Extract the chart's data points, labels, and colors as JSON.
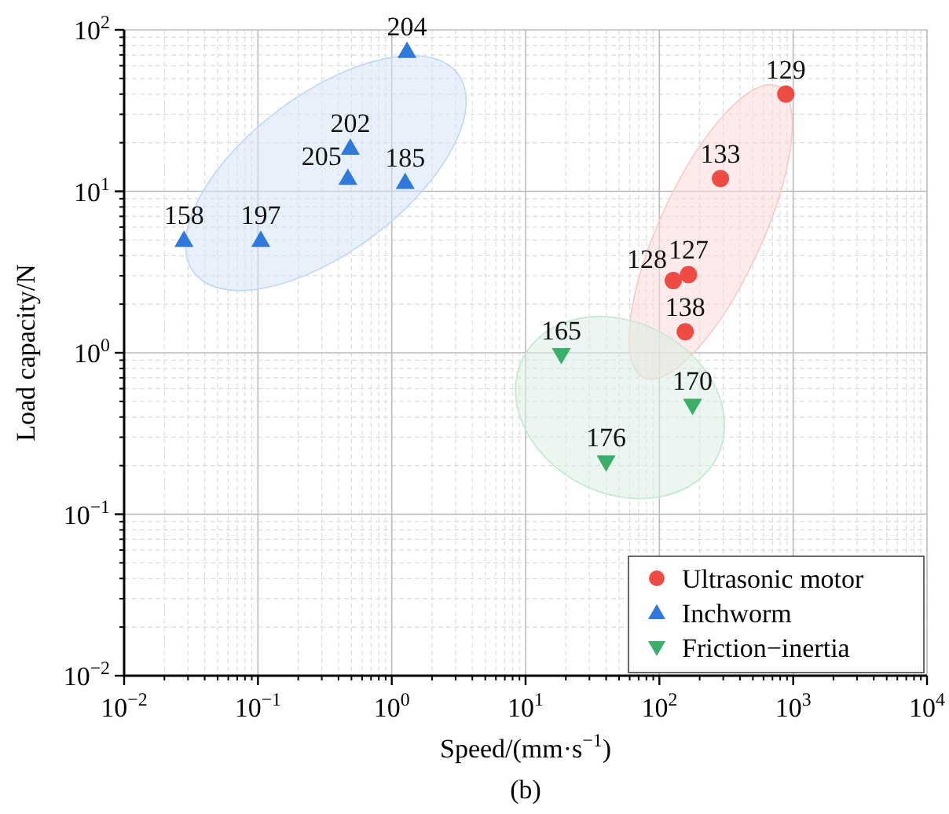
{
  "chart_data": {
    "type": "scatter",
    "xlabel": "Speed/(mm·s$^{−1}$)",
    "ylabel": "Load capacity/N",
    "log": "xy",
    "grid": true,
    "legend": "bottom right",
    "xlim": [
      0.01,
      10000
    ],
    "ylim": [
      0.01,
      100
    ],
    "xticks": [
      {
        "value": 0.01,
        "label": "10$^{−2}$"
      },
      {
        "value": 0.1,
        "label": "10$^{−1}$"
      },
      {
        "value": 1,
        "label": "10$^{0}$"
      },
      {
        "value": 10,
        "label": "10$^{1}$"
      },
      {
        "value": 100,
        "label": "10$^{2}$"
      },
      {
        "value": 1000,
        "label": "10$^{3}$"
      },
      {
        "value": 10000,
        "label": "10$^{4}$"
      }
    ],
    "yticks": [
      {
        "value": 0.01,
        "label": "10$^{−2}$"
      },
      {
        "value": 0.1,
        "label": "10$^{−1}$"
      },
      {
        "value": 1,
        "label": "10$^{0}$"
      },
      {
        "value": 10,
        "label": "10$^{1}$"
      },
      {
        "value": 100,
        "label": "10$^{2}$"
      }
    ],
    "series": [
      {
        "name": "Ultrasonic motor",
        "color": "#ef4b45",
        "marker": "circle",
        "x": [
          880,
          286,
          165,
          127,
          156
        ],
        "values": [
          40,
          12,
          3.05,
          2.8,
          1.35
        ]
      },
      {
        "name": "Inchworm",
        "color": "#2f78dc",
        "marker": "triangle",
        "x": [
          0.028,
          0.105,
          0.47,
          0.49,
          1.26,
          1.3
        ],
        "values": [
          5,
          5,
          12.1,
          18.6,
          11.4,
          74
        ]
      },
      {
        "name": "Friction−inertia",
        "color": "#3bae6a",
        "marker": "triangle-down",
        "x": [
          18.5,
          177,
          40
        ],
        "values": [
          0.97,
          0.47,
          0.21
        ]
      }
    ],
    "annotations": [
      {
        "text": "129",
        "x": 880,
        "y": 40
      },
      {
        "text": "133",
        "x": 286,
        "y": 12
      },
      {
        "text": "127",
        "x": 165,
        "y": 3.05
      },
      {
        "text": "128",
        "x": 127,
        "y": 2.8
      },
      {
        "text": "138",
        "x": 156,
        "y": 1.35
      },
      {
        "text": "158",
        "x": 0.028,
        "y": 5
      },
      {
        "text": "197",
        "x": 0.105,
        "y": 5
      },
      {
        "text": "202",
        "x": 0.49,
        "y": 18.6
      },
      {
        "text": "205",
        "x": 0.47,
        "y": 12.1
      },
      {
        "text": "185",
        "x": 1.26,
        "y": 11.4
      },
      {
        "text": "204",
        "x": 1.3,
        "y": 74
      },
      {
        "text": "165",
        "x": 18.5,
        "y": 0.97
      },
      {
        "text": "170",
        "x": 177,
        "y": 0.47
      },
      {
        "text": "176",
        "x": 40,
        "y": 0.21
      },
      "(b)"
    ]
  }
}
